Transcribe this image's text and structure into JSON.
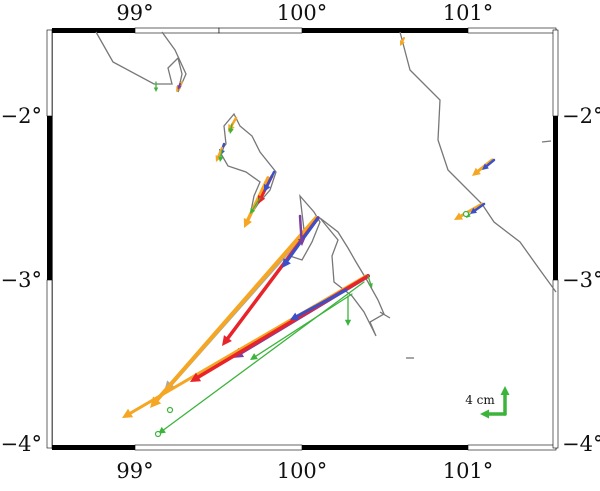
{
  "map": {
    "lon_range": [
      98.5,
      101.5
    ],
    "lat_range": [
      -4.0,
      -1.5
    ],
    "x_ticks": [
      {
        "lon": 99,
        "label": "99°"
      },
      {
        "lon": 100,
        "label": "100°"
      },
      {
        "lon": 101,
        "label": "101°"
      }
    ],
    "y_ticks": [
      {
        "lat": -2,
        "label": "−2°"
      },
      {
        "lat": -3,
        "label": "−3°"
      },
      {
        "lat": -4,
        "label": "−4°"
      }
    ],
    "scale_bar": {
      "label": "4 cm",
      "color": "#3cb43c"
    }
  },
  "colors": {
    "coastline": "#777777",
    "orange": "#f5a623",
    "blue": "#3a4fc8",
    "red": "#e8242a",
    "purple": "#7b3fa0",
    "green": "#3cb43c",
    "gray": "#a9a9a9"
  }
}
